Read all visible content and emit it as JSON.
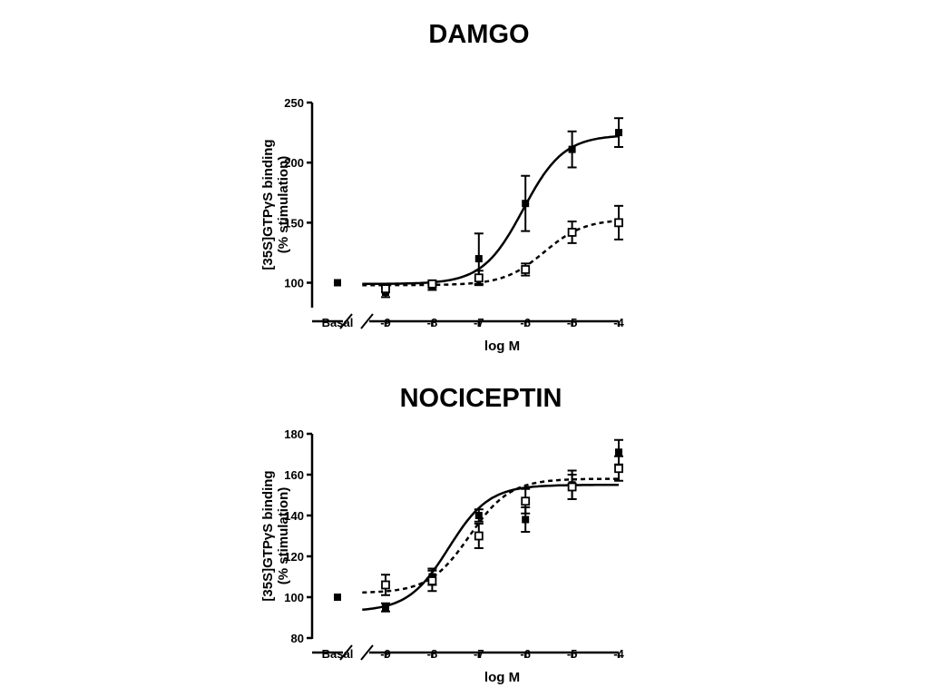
{
  "chart_data": [
    {
      "type": "line",
      "title": "DAMGO",
      "xlabel": "log M",
      "ylabel_line1": "[35S]GTPγS binding",
      "ylabel_line2": "(% stimulation)",
      "ylim": [
        80,
        250
      ],
      "yticks": [
        100,
        150,
        200,
        250
      ],
      "xlim": [
        -9.5,
        -4
      ],
      "xticks": [
        -9,
        -8,
        -7,
        -6,
        -5,
        -4
      ],
      "basal_label": "Basal",
      "basal_value": 100,
      "series": [
        {
          "marker": "filled-square",
          "line": "solid",
          "x": [
            -9,
            -8,
            -7,
            -6,
            -5,
            -4
          ],
          "y": [
            92,
            97,
            120,
            166,
            211,
            225
          ],
          "err": [
            4,
            3,
            21,
            23,
            15,
            12
          ],
          "fit": {
            "bottom": 99,
            "top": 223,
            "logEC50": -6.05,
            "hill": 1
          }
        },
        {
          "marker": "open-square",
          "line": "dashed",
          "x": [
            -9,
            -8,
            -7,
            -6,
            -5,
            -4
          ],
          "y": [
            95,
            99,
            104,
            111,
            142,
            150
          ],
          "err": [
            3,
            3,
            6,
            5,
            9,
            14
          ],
          "fit": {
            "bottom": 98,
            "top": 153,
            "logEC50": -5.6,
            "hill": 1
          }
        }
      ]
    },
    {
      "type": "line",
      "title": "NOCICEPTIN",
      "xlabel": "log M",
      "ylabel_line1": "[35S]GTPγS binding",
      "ylabel_line2": "(% stimulation)",
      "ylim": [
        80,
        180
      ],
      "yticks": [
        80,
        100,
        120,
        140,
        160,
        180
      ],
      "xlim": [
        -9.5,
        -4
      ],
      "xticks": [
        -9,
        -8,
        -7,
        -6,
        -5,
        -4
      ],
      "basal_label": "Basal",
      "basal_value": 100,
      "series": [
        {
          "marker": "filled-square",
          "line": "solid",
          "x": [
            -9,
            -8,
            -7,
            -6,
            -5,
            -4
          ],
          "y": [
            95,
            110,
            140,
            138,
            155,
            171
          ],
          "err": [
            2,
            4,
            3,
            6,
            7,
            6
          ],
          "fit": {
            "bottom": 93,
            "top": 155,
            "logEC50": -7.65,
            "hill": 1
          }
        },
        {
          "marker": "open-square",
          "line": "dashed",
          "x": [
            -9,
            -8,
            -7,
            -6,
            -5,
            -4
          ],
          "y": [
            106,
            108,
            130,
            147,
            154,
            163
          ],
          "err": [
            5,
            5,
            6,
            6,
            6,
            6
          ],
          "fit": {
            "bottom": 102,
            "top": 158,
            "logEC50": -7.2,
            "hill": 1
          }
        }
      ]
    }
  ]
}
